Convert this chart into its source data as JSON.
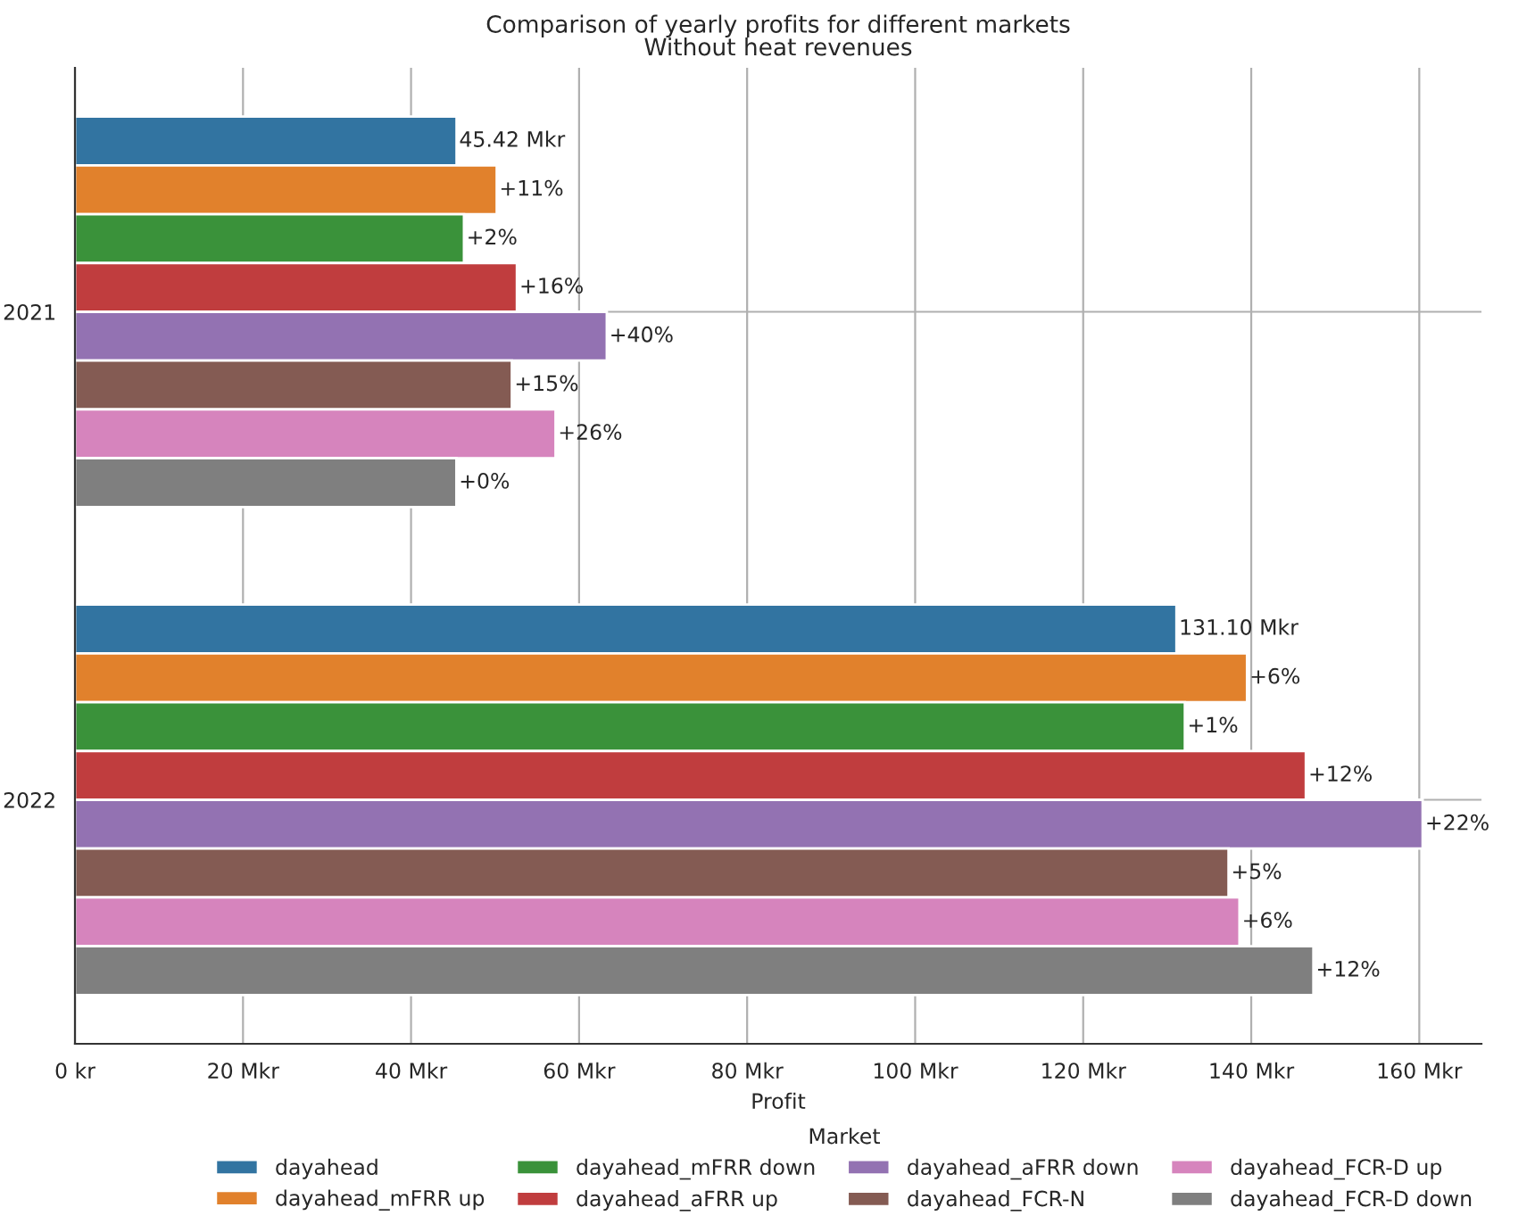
{
  "chart_data": {
    "type": "bar",
    "orientation": "horizontal",
    "title": "Comparison of yearly profits for different markets",
    "subtitle": "Without heat revenues",
    "xlabel": "Profit",
    "legend_title": "Market",
    "categories": [
      "2021",
      "2022"
    ],
    "series": [
      {
        "name": "dayahead",
        "color": "#3274a1",
        "values": [
          45.42,
          131.1
        ],
        "value_labels": [
          "45.42 Mkr",
          "131.10 Mkr"
        ]
      },
      {
        "name": "dayahead_mFRR up",
        "color": "#e1812c",
        "values": [
          50.2,
          139.5
        ]
      },
      {
        "name": "dayahead_mFRR down",
        "color": "#3a923a",
        "values": [
          46.3,
          132.1
        ]
      },
      {
        "name": "dayahead_aFRR up",
        "color": "#c03d3e",
        "values": [
          52.6,
          146.5
        ]
      },
      {
        "name": "dayahead_aFRR down",
        "color": "#9372b2",
        "values": [
          63.3,
          160.4
        ]
      },
      {
        "name": "dayahead_FCR-N",
        "color": "#845b53",
        "values": [
          52.0,
          137.3
        ]
      },
      {
        "name": "dayahead_FCR-D up",
        "color": "#d684bd",
        "values": [
          57.2,
          138.6
        ]
      },
      {
        "name": "dayahead_FCR-D down",
        "color": "#7f7f7f",
        "values": [
          45.4,
          147.4
        ]
      }
    ],
    "annotations": [
      "+11%",
      "+2%",
      "+16%",
      "+40%",
      "+15%",
      "+26%",
      "+0%",
      "+6%",
      "+1%",
      "+12%",
      "+22%",
      "+5%",
      "+6%",
      "+12%"
    ],
    "xlim": [
      0,
      167.4
    ],
    "xticks": [
      {
        "value": 0,
        "label": "0 kr"
      },
      {
        "value": 20,
        "label": "20 Mkr"
      },
      {
        "value": 40,
        "label": "40 Mkr"
      },
      {
        "value": 60,
        "label": "60 Mkr"
      },
      {
        "value": 80,
        "label": "80 Mkr"
      },
      {
        "value": 100,
        "label": "100 Mkr"
      },
      {
        "value": 120,
        "label": "120 Mkr"
      },
      {
        "value": 140,
        "label": "140 Mkr"
      },
      {
        "value": 160,
        "label": "160 Mkr"
      }
    ],
    "grid": true,
    "legend": "bottom"
  }
}
